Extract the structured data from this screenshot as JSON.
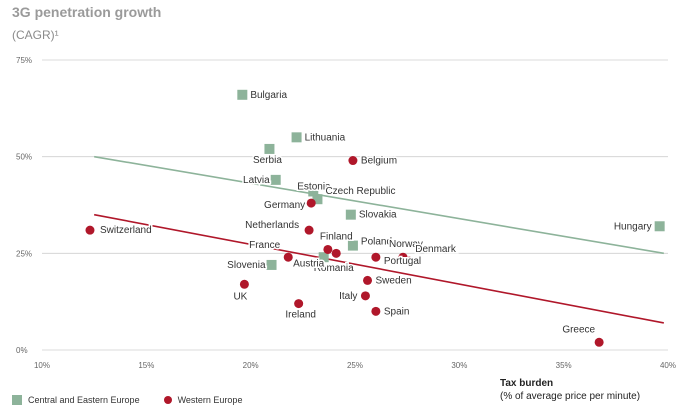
{
  "chart_data": {
    "type": "scatter",
    "title": "3G penetration growth",
    "subtitle": "(CAGR)¹",
    "xlabel": "Tax burden",
    "xlabel_sub": "(% of average price per minute)",
    "xlim": [
      10,
      40
    ],
    "ylim": [
      0,
      75
    ],
    "x_ticks": [
      "10%",
      "15%",
      "20%",
      "25%",
      "30%",
      "35%",
      "40%"
    ],
    "y_ticks": [
      "0%",
      "25%",
      "50%",
      "75%"
    ],
    "grid": "horizontal",
    "legend_position": "bottom-left",
    "colors": {
      "Central and Eastern Europe": "#8db39a",
      "Western Europe": "#b0172a",
      "grid": "#cfcfcf"
    },
    "series": [
      {
        "name": "Central and Eastern Europe",
        "marker": "square",
        "points": [
          {
            "label": "Bulgaria",
            "x": 19.6,
            "y": 66
          },
          {
            "label": "Lithuania",
            "x": 22.2,
            "y": 55
          },
          {
            "label": "Serbia",
            "x": 20.9,
            "y": 52
          },
          {
            "label": "Latvia",
            "x": 21.2,
            "y": 44
          },
          {
            "label": "Estonia",
            "x": 23.0,
            "y": 41
          },
          {
            "label": "Czech Republic",
            "x": 23.2,
            "y": 39
          },
          {
            "label": "Slovakia",
            "x": 24.8,
            "y": 35
          },
          {
            "label": "Poland",
            "x": 24.9,
            "y": 27
          },
          {
            "label": "Slovenia",
            "x": 21.0,
            "y": 22
          },
          {
            "label": "Romania",
            "x": 23.5,
            "y": 24
          },
          {
            "label": "Hungary",
            "x": 39.6,
            "y": 32
          }
        ],
        "trendline": {
          "x": [
            12.5,
            39.8
          ],
          "y": [
            50,
            25
          ]
        }
      },
      {
        "name": "Western Europe",
        "marker": "circle",
        "points": [
          {
            "label": "Belgium",
            "x": 24.9,
            "y": 49
          },
          {
            "label": "Switzerland",
            "x": 12.3,
            "y": 31
          },
          {
            "label": "Germany",
            "x": 22.9,
            "y": 38
          },
          {
            "label": "Netherlands",
            "x": 22.8,
            "y": 31
          },
          {
            "label": "Finland",
            "x": 23.7,
            "y": 26
          },
          {
            "label": "France",
            "x": 21.8,
            "y": 24
          },
          {
            "label": "Norway",
            "x": 27.3,
            "y": 24
          },
          {
            "label": "Denmark",
            "x": 27.6,
            "y": 23
          },
          {
            "label": "Portugal",
            "x": 26.0,
            "y": 24
          },
          {
            "label": "Sweden",
            "x": 25.6,
            "y": 18
          },
          {
            "label": "Austria",
            "x": 24.1,
            "y": 25
          },
          {
            "label": "UK",
            "x": 19.7,
            "y": 17
          },
          {
            "label": "Italy",
            "x": 25.5,
            "y": 14
          },
          {
            "label": "Ireland",
            "x": 22.3,
            "y": 12
          },
          {
            "label": "Spain",
            "x": 26.0,
            "y": 10
          },
          {
            "label": "Greece",
            "x": 36.7,
            "y": 2
          }
        ],
        "trendline": {
          "x": [
            12.5,
            39.8
          ],
          "y": [
            35,
            7
          ]
        }
      }
    ]
  },
  "legend": {
    "items": [
      "Central and Eastern Europe",
      "Western Europe"
    ]
  }
}
